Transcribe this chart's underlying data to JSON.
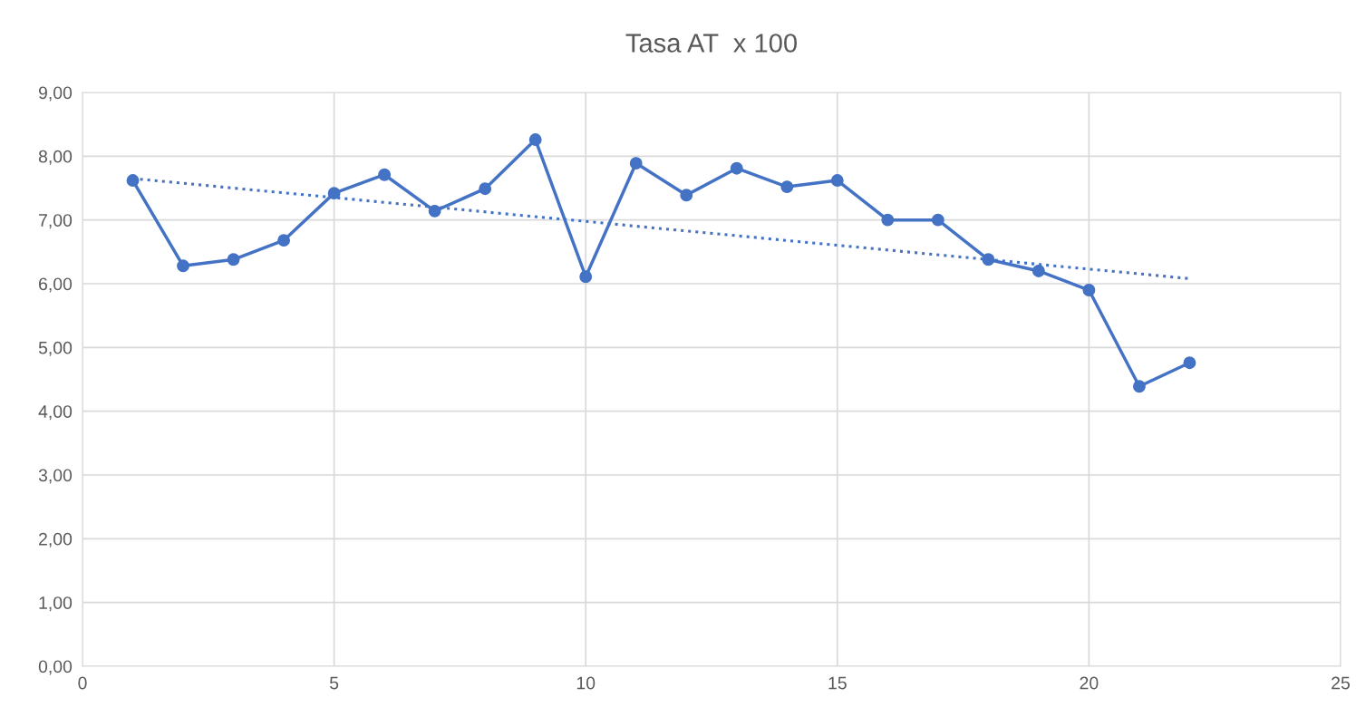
{
  "chart_data": {
    "type": "line",
    "title": "Tasa AT  x 100",
    "x": [
      1,
      2,
      3,
      4,
      5,
      6,
      7,
      8,
      9,
      10,
      11,
      12,
      13,
      14,
      15,
      16,
      17,
      18,
      19,
      20,
      21,
      22
    ],
    "series": [
      {
        "color": "#4472c4",
        "marker": "circle",
        "line_style": "solid",
        "values": [
          7.62,
          6.28,
          6.38,
          6.68,
          7.42,
          7.71,
          7.14,
          7.49,
          8.26,
          6.11,
          7.89,
          7.39,
          7.81,
          7.52,
          7.62,
          7.0,
          7.0,
          6.38,
          6.2,
          5.9,
          4.39,
          4.76
        ]
      },
      {
        "color": "#4472c4",
        "marker": "none",
        "line_style": "dotted",
        "x": [
          1,
          22
        ],
        "values": [
          7.65,
          6.08
        ]
      }
    ],
    "xlim": [
      0,
      25
    ],
    "xticks": [
      0,
      5,
      10,
      15,
      20,
      25
    ],
    "ylim": [
      0,
      9
    ],
    "yticks": [
      {
        "value": 0,
        "label": "0,00"
      },
      {
        "value": 1,
        "label": "1,00"
      },
      {
        "value": 2,
        "label": "2,00"
      },
      {
        "value": 3,
        "label": "3,00"
      },
      {
        "value": 4,
        "label": "4,00"
      },
      {
        "value": 5,
        "label": "5,00"
      },
      {
        "value": 6,
        "label": "6,00"
      },
      {
        "value": 7,
        "label": "7,00"
      },
      {
        "value": 8,
        "label": "8,00"
      },
      {
        "value": 9,
        "label": "9,00"
      }
    ],
    "grid": true,
    "legend": false
  }
}
